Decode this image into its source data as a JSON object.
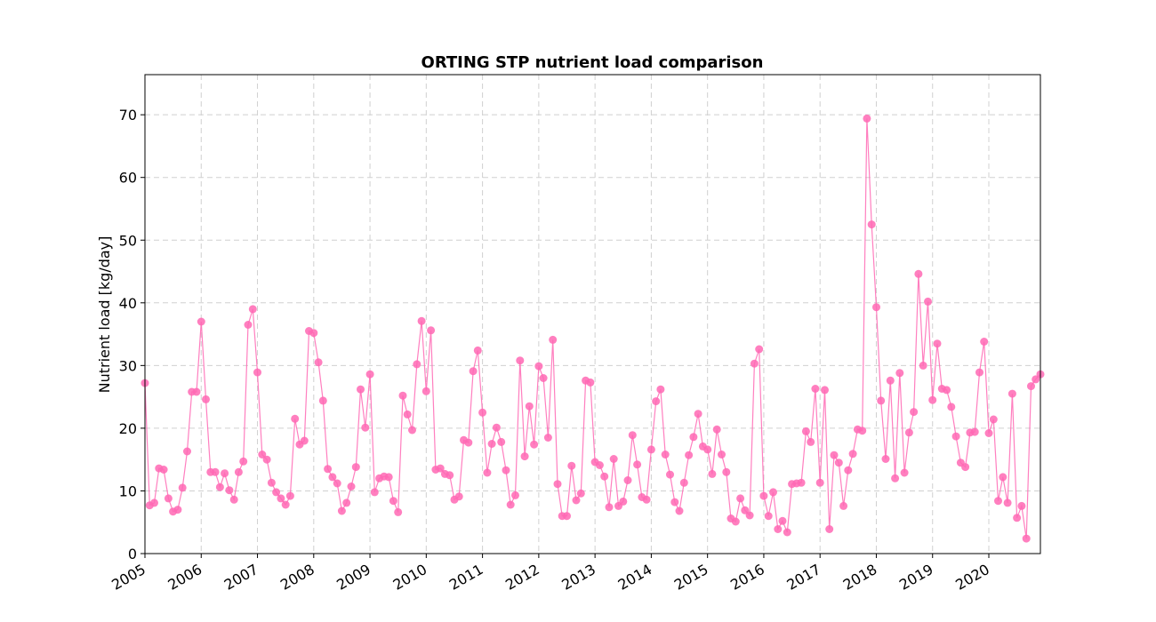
{
  "chart_data": {
    "type": "line",
    "title": "ORTING STP nutrient load comparison",
    "xlabel": "",
    "ylabel": "Nutrient load [kg/day]",
    "ylim": [
      0,
      76.4
    ],
    "xlim": [
      "2005-01",
      "2020-12"
    ],
    "grid": true,
    "marker": "circle",
    "color": "#ff69b4",
    "x_ticks": [
      "2005",
      "2006",
      "2007",
      "2008",
      "2009",
      "2010",
      "2011",
      "2012",
      "2013",
      "2014",
      "2015",
      "2016",
      "2017",
      "2018",
      "2019",
      "2020"
    ],
    "y_ticks": [
      0,
      10,
      20,
      30,
      40,
      50,
      60,
      70
    ],
    "series": [
      {
        "start": "2005-01",
        "frequency": "monthly",
        "values": [
          27.2,
          7.7,
          8.1,
          13.6,
          13.4,
          8.8,
          6.7,
          7.0,
          10.5,
          16.3,
          25.8,
          25.8,
          37.0,
          24.6,
          13.0,
          13.0,
          10.6,
          12.8,
          10.1,
          8.6,
          13.0,
          14.7,
          36.5,
          39.0,
          28.9,
          15.8,
          15.0,
          11.3,
          9.8,
          8.8,
          7.8,
          9.2,
          21.5,
          17.4,
          18.0,
          35.5,
          35.2,
          30.5,
          24.4,
          13.5,
          12.2,
          11.2,
          6.8,
          8.1,
          10.7,
          13.8,
          26.2,
          20.1,
          28.6,
          9.8,
          12.0,
          12.3,
          12.2,
          8.4,
          6.6,
          25.2,
          22.2,
          19.7,
          30.2,
          37.1,
          25.9,
          35.6,
          13.4,
          13.6,
          12.7,
          12.5,
          8.6,
          9.1,
          18.1,
          17.7,
          29.1,
          32.4,
          22.5,
          12.9,
          17.5,
          20.1,
          17.8,
          13.3,
          7.8,
          9.3,
          30.8,
          15.5,
          23.5,
          17.4,
          29.9,
          28.0,
          18.5,
          34.1,
          11.1,
          6.0,
          6.0,
          14.0,
          8.5,
          9.6,
          27.6,
          27.3,
          14.6,
          14.1,
          12.3,
          7.4,
          15.1,
          7.6,
          8.3,
          11.7,
          18.9,
          14.2,
          9.0,
          8.6,
          16.6,
          24.3,
          26.2,
          15.8,
          12.6,
          8.2,
          6.8,
          11.3,
          15.7,
          18.6,
          22.3,
          17.1,
          16.6,
          12.7,
          19.8,
          15.8,
          13.0,
          5.6,
          5.1,
          8.8,
          6.9,
          6.1,
          30.3,
          32.6,
          9.2,
          6.0,
          9.8,
          3.9,
          5.2,
          3.4,
          11.1,
          11.2,
          11.3,
          19.5,
          17.8,
          26.3,
          11.3,
          26.1,
          3.9,
          15.7,
          14.5,
          7.6,
          13.3,
          15.9,
          19.8,
          19.6,
          69.4,
          52.5,
          39.3,
          24.4,
          15.1,
          27.6,
          12.0,
          28.8,
          12.9,
          19.3,
          22.6,
          44.6,
          30.0,
          40.2,
          24.5,
          33.5,
          26.3,
          26.1,
          23.4,
          18.7,
          14.5,
          13.8,
          19.3,
          19.4,
          28.9,
          33.8,
          19.2,
          21.4,
          8.4,
          12.2,
          8.1,
          25.5,
          5.7,
          7.6,
          2.4,
          26.7,
          27.8,
          28.6
        ]
      }
    ]
  }
}
